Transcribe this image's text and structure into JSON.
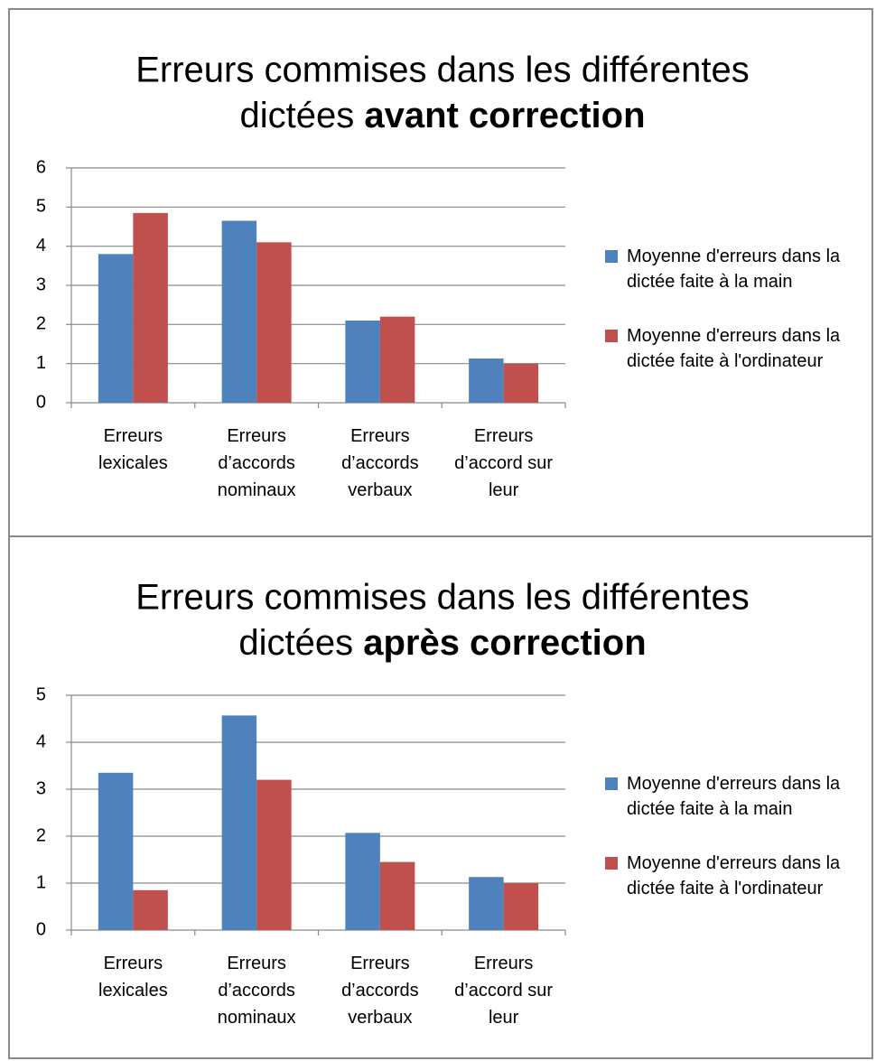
{
  "chart_data": [
    {
      "type": "bar",
      "title": {
        "line1": "Erreurs commises dans les différentes",
        "line2": "dictées",
        "bold": "avant correction"
      },
      "categories": [
        "Erreurs lexicales",
        "Erreurs d’accords nominaux",
        "Erreurs d’accords verbaux",
        "Erreurs d’accord sur leur"
      ],
      "series": [
        {
          "name": "Moyenne d'erreurs dans la dictée faite à la main",
          "color": "#4f81bd",
          "values": [
            3.8,
            4.65,
            2.1,
            1.13
          ]
        },
        {
          "name": "Moyenne d'erreurs dans la dictée faite à l'ordinateur",
          "color": "#c0504d",
          "values": [
            4.85,
            4.1,
            2.2,
            1.0
          ]
        }
      ],
      "ylim": [
        0,
        6
      ],
      "yticks": [
        0,
        1,
        2,
        3,
        4,
        5,
        6
      ],
      "grid": true,
      "legend": "right"
    },
    {
      "type": "bar",
      "title": {
        "line1": "Erreurs commises dans les différentes",
        "line2": "dictées",
        "bold": "après correction"
      },
      "categories": [
        "Erreurs lexicales",
        "Erreurs d’accords nominaux",
        "Erreurs d’accords verbaux",
        "Erreurs d’accord sur leur"
      ],
      "series": [
        {
          "name": "Moyenne d'erreurs dans la dictée faite à la main",
          "color": "#4f81bd",
          "values": [
            3.35,
            4.57,
            2.07,
            1.13
          ]
        },
        {
          "name": "Moyenne d'erreurs dans la dictée faite à l'ordinateur",
          "color": "#c0504d",
          "values": [
            0.85,
            3.2,
            1.45,
            1.0
          ]
        }
      ],
      "ylim": [
        0,
        5
      ],
      "yticks": [
        0,
        1,
        2,
        3,
        4,
        5
      ],
      "grid": true,
      "legend": "right"
    }
  ]
}
